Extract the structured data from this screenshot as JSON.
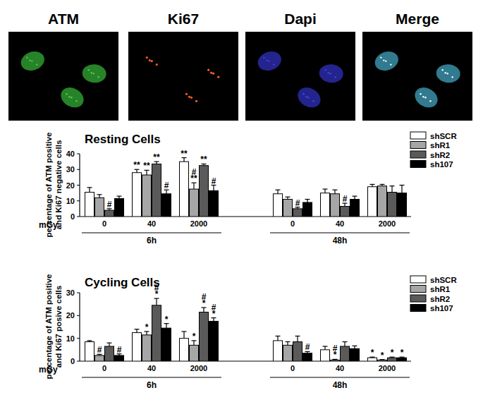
{
  "image_panels": {
    "labels": [
      "ATM",
      "Ki67",
      "Dapi",
      "Merge"
    ]
  },
  "chart_data": [
    {
      "type": "bar",
      "title": "Resting Cells",
      "y_label": [
        "percentage of ATM positive",
        "and Ki67 negative cells"
      ],
      "x_label": "mGy",
      "categories": [
        "0",
        "40",
        "2000",
        "0",
        "40",
        "2000"
      ],
      "groups": [
        {
          "label": "6h",
          "size": 3
        },
        {
          "label": "48h",
          "size": 3
        }
      ],
      "ylim": [
        0,
        40
      ],
      "yticks": [
        0,
        10,
        20,
        30,
        40
      ],
      "grid": false,
      "legend": "top-right",
      "series": [
        {
          "name": "shSCR",
          "color": "#ffffff",
          "values": [
            15.5,
            28,
            35,
            14.5,
            15,
            19
          ],
          "errors": [
            3,
            2,
            2.5,
            2.5,
            2.5,
            1.5
          ],
          "annotations": [
            null,
            [
              "**"
            ],
            [
              "**"
            ],
            null,
            null,
            null
          ]
        },
        {
          "name": "shR1",
          "color": "#a6a6a6",
          "values": [
            12,
            26.5,
            17.5,
            11,
            14.5,
            19.5
          ],
          "errors": [
            2,
            3,
            4,
            1.5,
            2.5,
            1
          ],
          "annotations": [
            null,
            [
              "**"
            ],
            [
              "#",
              "**"
            ],
            null,
            null,
            null
          ]
        },
        {
          "name": "shR2",
          "color": "#5a5a5a",
          "values": [
            4,
            33.5,
            32.5,
            5,
            6.5,
            15.5
          ],
          "errors": [
            1,
            1.5,
            1,
            1,
            2,
            4
          ],
          "annotations": [
            [
              "#"
            ],
            [
              "**"
            ],
            [
              "**"
            ],
            [
              "#"
            ],
            [
              "#"
            ],
            null
          ]
        },
        {
          "name": "sh107",
          "color": "#000000",
          "values": [
            11.5,
            14.5,
            16.5,
            9,
            11,
            15
          ],
          "errors": [
            1.5,
            2.5,
            3.5,
            2,
            2,
            5
          ],
          "annotations": [
            null,
            [
              "#"
            ],
            [
              "#"
            ],
            null,
            null,
            null
          ]
        }
      ]
    },
    {
      "type": "bar",
      "title": "Cycling Cells",
      "y_label": [
        "percentage of ATM positive",
        "and Ki67 posive cells"
      ],
      "x_label": "mGy",
      "categories": [
        "0",
        "40",
        "2000",
        "0",
        "40",
        "2000"
      ],
      "groups": [
        {
          "label": "6h",
          "size": 3
        },
        {
          "label": "48h",
          "size": 3
        }
      ],
      "ylim": [
        0,
        30
      ],
      "yticks": [
        0,
        10,
        20,
        30
      ],
      "grid": false,
      "legend": "top-right",
      "series": [
        {
          "name": "shSCR",
          "color": "#ffffff",
          "values": [
            8.5,
            12.5,
            10,
            9,
            5,
            1.5
          ],
          "errors": [
            0.5,
            1.5,
            3,
            2,
            1.5,
            0.3
          ],
          "annotations": [
            null,
            null,
            null,
            null,
            null,
            [
              "*"
            ]
          ]
        },
        {
          "name": "shR1",
          "color": "#a6a6a6",
          "values": [
            2.5,
            11.5,
            7,
            7,
            0.5,
            0.5
          ],
          "errors": [
            0.5,
            1.5,
            2,
            1.5,
            0.3,
            0.2
          ],
          "annotations": [
            [
              "#"
            ],
            [
              "*"
            ],
            [
              "*"
            ],
            null,
            [
              "#",
              "*"
            ],
            [
              "*"
            ]
          ]
        },
        {
          "name": "shR2",
          "color": "#5a5a5a",
          "values": [
            6.5,
            24.5,
            21.5,
            8.5,
            6.5,
            1.5
          ],
          "errors": [
            1.5,
            3,
            2,
            2.5,
            2,
            0.3
          ],
          "annotations": [
            null,
            [
              "#",
              "*"
            ],
            [
              "#",
              "*"
            ],
            null,
            null,
            [
              "*"
            ]
          ]
        },
        {
          "name": "sh107",
          "color": "#000000",
          "values": [
            2.5,
            14.5,
            17.5,
            3.5,
            5.5,
            1.5
          ],
          "errors": [
            0.7,
            2,
            1.5,
            0.7,
            1.2,
            0.3
          ],
          "annotations": [
            [
              "#"
            ],
            [
              "*"
            ],
            [
              "#",
              "*"
            ],
            [
              "#"
            ],
            null,
            [
              "*"
            ]
          ]
        }
      ]
    }
  ]
}
